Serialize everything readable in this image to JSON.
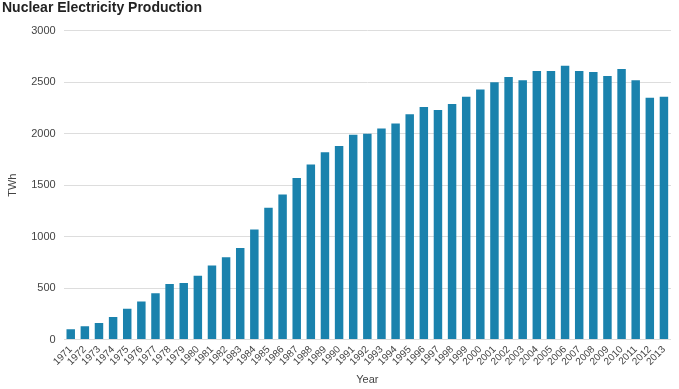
{
  "chart_data": {
    "type": "bar",
    "title": "Nuclear Electricity Production",
    "x_label": "Year",
    "y_label": "TWh",
    "categories": [
      "1971",
      "1972",
      "1973",
      "1974",
      "1975",
      "1976",
      "1977",
      "1978",
      "1979",
      "1980",
      "1981",
      "1982",
      "1983",
      "1984",
      "1985",
      "1986",
      "1987",
      "1988",
      "1989",
      "1990",
      "1991",
      "1992",
      "1993",
      "1994",
      "1995",
      "1996",
      "1997",
      "1998",
      "1999",
      "2000",
      "2001",
      "2002",
      "2003",
      "2004",
      "2005",
      "2006",
      "2007",
      "2008",
      "2009",
      "2010",
      "2011",
      "2012",
      "2013"
    ],
    "values": [
      100,
      130,
      160,
      220,
      300,
      370,
      450,
      540,
      550,
      620,
      720,
      800,
      890,
      1070,
      1280,
      1410,
      1570,
      1700,
      1820,
      1880,
      1990,
      2000,
      2050,
      2100,
      2190,
      2260,
      2230,
      2290,
      2360,
      2430,
      2500,
      2550,
      2520,
      2610,
      2610,
      2660,
      2610,
      2600,
      2560,
      2630,
      2520,
      2350,
      2360
    ],
    "color": "#1a82ad",
    "ylim": [
      0,
      3000
    ],
    "yticks": [
      0,
      500,
      1000,
      1500,
      2000,
      2500,
      3000
    ],
    "grid": true
  }
}
